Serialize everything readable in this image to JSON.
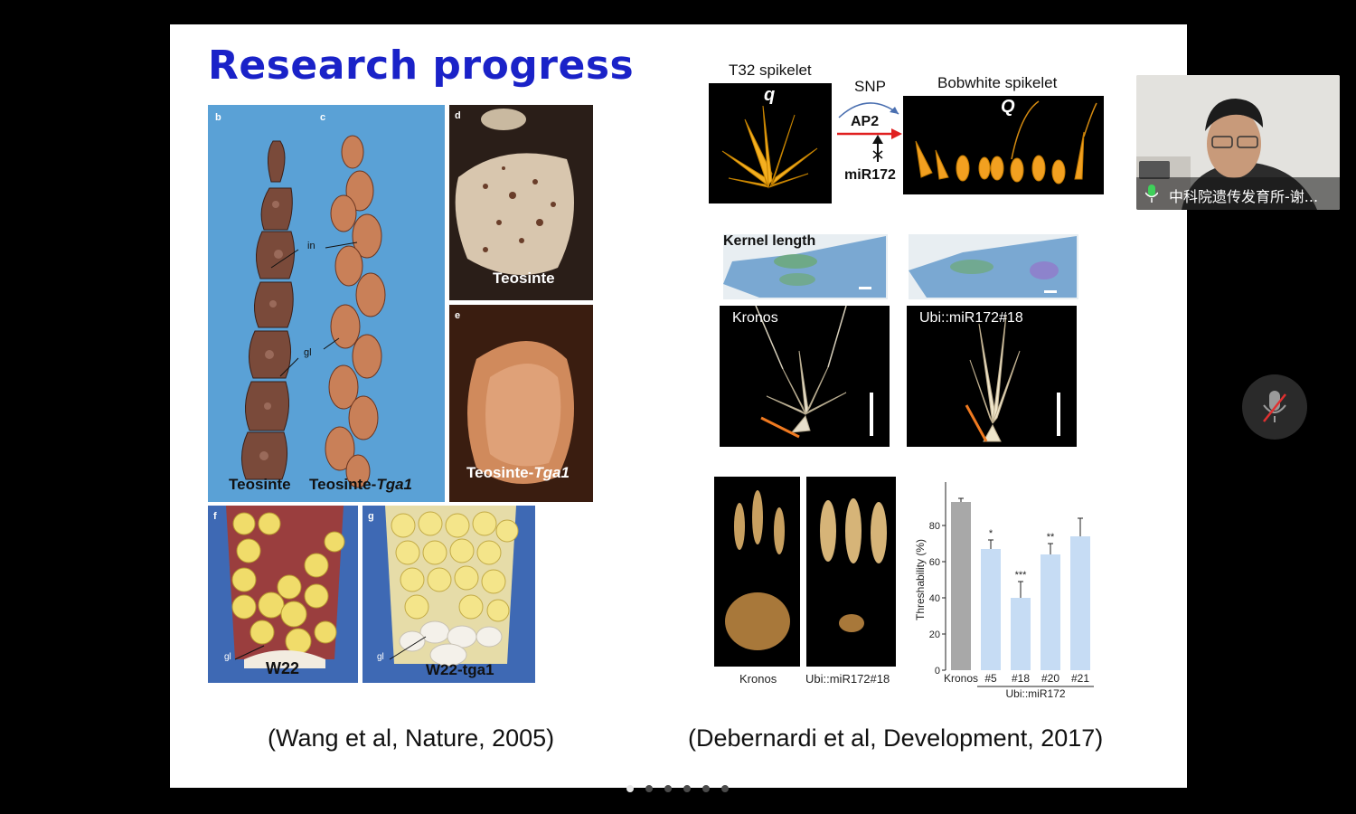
{
  "slide": {
    "title": "Research progress",
    "left_figure": {
      "panels": {
        "b": "b",
        "c": "c",
        "d": "d",
        "e": "e",
        "f": "f",
        "g": "g"
      },
      "annotations": {
        "in": "in",
        "gl": "gl"
      },
      "captions": {
        "teosinte": "Teosinte",
        "teosinte_tga1_prefix": "Teosinte-",
        "teosinte_tga1_gene": "Tga1",
        "panel_d": "Teosinte",
        "panel_e_prefix": "Teosinte-",
        "panel_e_gene": "Tga1",
        "w22": "W22",
        "w22_tga1": "W22-tga1"
      },
      "citation": "(Wang et al, Nature, 2005)"
    },
    "right_figure": {
      "t32_label": "T32 spikelet",
      "t32_allele": "q",
      "snp": "SNP",
      "ap2": "AP2",
      "mir172": "miR172",
      "bobwhite_label": "Bobwhite spikelet",
      "bobwhite_allele": "Q",
      "kernel_length": "Kernel length",
      "kronos_photo": "Kronos",
      "ubi_photo": "Ubi::miR172#18",
      "bottom_kronos": "Kronos",
      "bottom_ubi": "Ubi::miR172#18",
      "citation": "(Debernardi et al, Development, 2017)"
    },
    "chart_data": {
      "type": "bar",
      "ylabel": "Threshability (%)",
      "ylim": [
        0,
        100
      ],
      "yticks": [
        "0",
        "20",
        "40",
        "60",
        "80"
      ],
      "categories": [
        "Kronos",
        "#5",
        "#18",
        "#20",
        "#21"
      ],
      "values": [
        93,
        67,
        40,
        64,
        74
      ],
      "errors": [
        2,
        5,
        9,
        6,
        10
      ],
      "significance": [
        "",
        "*",
        "***",
        "**",
        ""
      ],
      "group_label": "Ubi::miR172",
      "colors": {
        "control": "#a8a8a8",
        "transgenic": "#c6dcf4"
      }
    }
  },
  "webcam": {
    "participant_name": "中科院遗传发育所-谢..."
  },
  "controls": {
    "mute_icon": "microphone-muted-icon"
  },
  "pagination": {
    "total": 6,
    "active": 1
  }
}
